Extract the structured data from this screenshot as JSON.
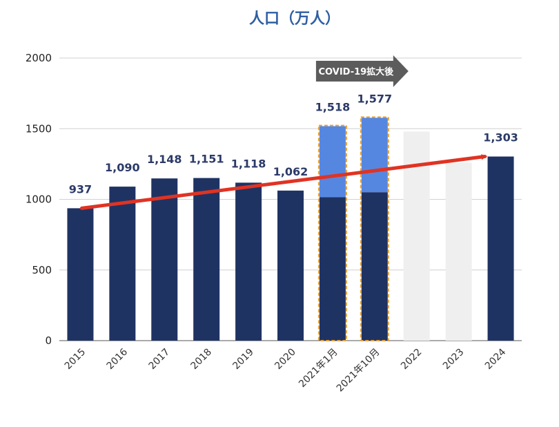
{
  "chart_data": {
    "type": "bar",
    "title": "人口（万人）",
    "categories": [
      "2015",
      "2016",
      "2017",
      "2018",
      "2019",
      "2020",
      "2021年1月",
      "2021年10月",
      "2022",
      "2023",
      "2024"
    ],
    "values": [
      937,
      1090,
      1148,
      1151,
      1118,
      1062,
      1518,
      1577,
      1480,
      1260,
      1303
    ],
    "value_labels": [
      "937",
      "1,090",
      "1,148",
      "1,151",
      "1,118",
      "1,062",
      "1,518",
      "1,577",
      "",
      "",
      "1,303"
    ],
    "stack_base": [
      null,
      null,
      null,
      null,
      null,
      null,
      1015,
      1050,
      null,
      null,
      null
    ],
    "ylim": [
      0,
      2000
    ],
    "yticks": [
      0,
      500,
      1000,
      1500,
      2000
    ],
    "grid": true,
    "colors": {
      "bar": "#1f3363",
      "highlight": "#5687e0",
      "ghost": "#efefef",
      "dashed_border": "#e6a23c",
      "trend": "#e03323",
      "title": "#2e5fa3",
      "value_label": "#2b3a67"
    },
    "annotations": {
      "covid_arrow": "COVID-19拡大後",
      "trend_line": {
        "from_category": "2015",
        "from_value": 937,
        "to_category": "2024",
        "to_value": 1303
      }
    }
  }
}
